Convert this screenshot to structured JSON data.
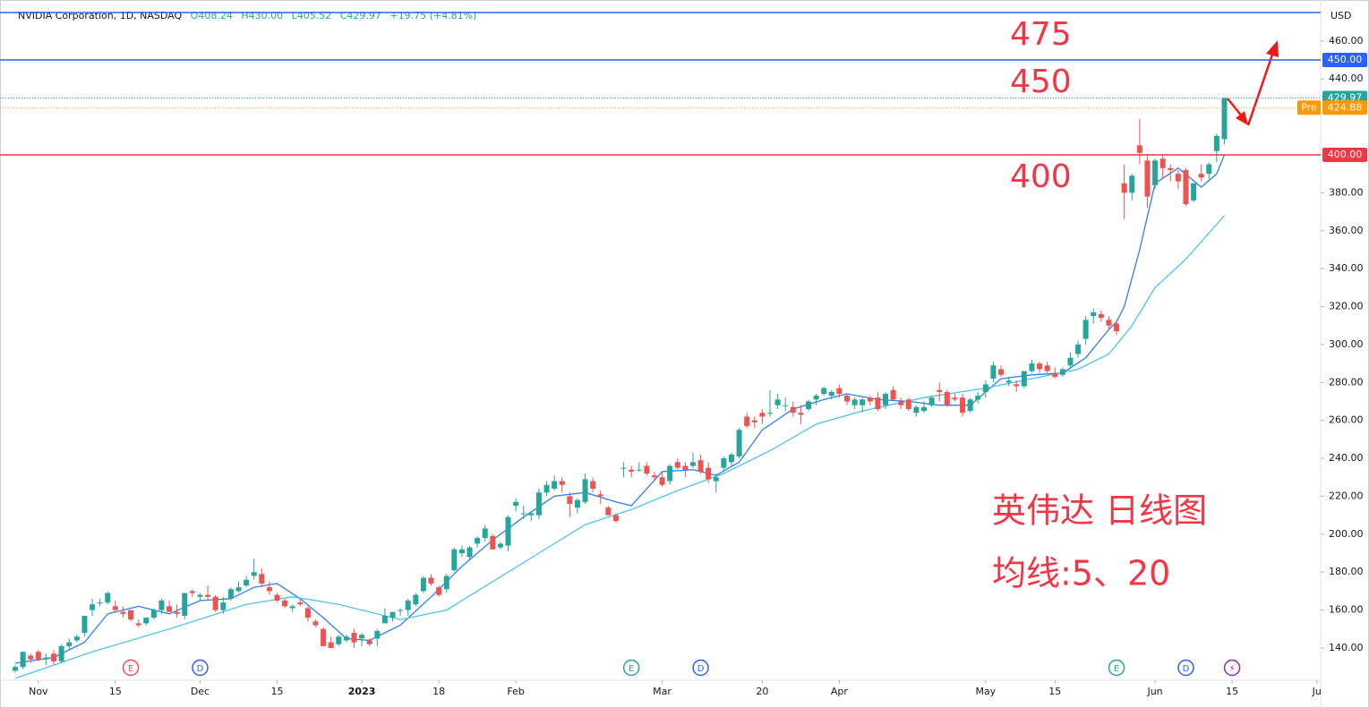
{
  "chart_data": {
    "type": "candlestick",
    "header": {
      "symbol": "NVIDIA Corporation, 1D, NASDAQ",
      "ohlc_labels": [
        "O408.24",
        "H430.00",
        "L405.52",
        "C429.97",
        "+19.75 (+4.81%)"
      ]
    },
    "currency": "USD",
    "up_color": "#26a69a",
    "down_color": "#ef5350",
    "xlim": [
      -1.98,
      169.5
    ],
    "xticks": [
      {
        "value": 3,
        "label": "Nov"
      },
      {
        "value": 13,
        "label": "15"
      },
      {
        "value": 24,
        "label": "Dec"
      },
      {
        "value": 34,
        "label": "15"
      },
      {
        "value": 45,
        "label": "2023"
      },
      {
        "value": 55,
        "label": "18"
      },
      {
        "value": 65,
        "label": "Feb"
      },
      {
        "value": 84,
        "label": "Mar"
      },
      {
        "value": 97,
        "label": "20"
      },
      {
        "value": 107,
        "label": "Apr"
      },
      {
        "value": 126,
        "label": "May"
      },
      {
        "value": 135,
        "label": "15"
      },
      {
        "value": 148,
        "label": "Jun"
      },
      {
        "value": 158,
        "label": "15"
      },
      {
        "value": 169,
        "label": "Ju"
      }
    ],
    "ylim": [
      123,
      478.8
    ],
    "yticks": [
      {
        "value": 140,
        "label": "140.00"
      },
      {
        "value": 160,
        "label": "160.00"
      },
      {
        "value": 180,
        "label": "180.00"
      },
      {
        "value": 200,
        "label": "200.00"
      },
      {
        "value": 220,
        "label": "220.00"
      },
      {
        "value": 240,
        "label": "240.00"
      },
      {
        "value": 260,
        "label": "260.00"
      },
      {
        "value": 280,
        "label": "280.00"
      },
      {
        "value": 300,
        "label": "300.00"
      },
      {
        "value": 320,
        "label": "320.00"
      },
      {
        "value": 340,
        "label": "340.00"
      },
      {
        "value": 360,
        "label": "360.00"
      },
      {
        "value": 380,
        "label": "380.00"
      },
      {
        "value": 440,
        "label": "440.00"
      },
      {
        "value": 460,
        "label": "460.00"
      }
    ],
    "candles": [
      [
        128,
        131,
        127,
        130
      ],
      [
        130,
        138,
        129,
        138
      ],
      [
        136,
        137,
        132,
        134
      ],
      [
        138,
        139,
        133,
        134
      ],
      [
        134,
        137,
        131,
        135
      ],
      [
        137,
        139,
        131,
        133
      ],
      [
        133,
        142,
        132,
        141
      ],
      [
        141,
        145,
        139,
        143
      ],
      [
        144,
        147,
        143,
        146
      ],
      [
        148,
        157,
        146,
        157
      ],
      [
        160,
        166,
        157,
        163
      ],
      [
        164,
        166,
        162,
        164
      ],
      [
        164,
        170,
        163,
        169
      ],
      [
        162,
        165,
        159,
        160
      ],
      [
        159,
        162,
        156,
        158
      ],
      [
        160,
        160,
        154,
        155
      ],
      [
        153,
        155,
        151,
        152
      ],
      [
        153,
        156,
        152,
        156
      ],
      [
        156,
        161,
        155,
        160
      ],
      [
        160,
        166,
        158,
        165
      ],
      [
        162,
        165,
        159,
        159
      ],
      [
        159,
        163,
        156,
        158
      ],
      [
        157,
        169,
        155,
        169
      ],
      [
        170,
        171,
        167,
        169
      ],
      [
        167,
        169,
        165,
        168
      ],
      [
        168,
        173,
        165,
        167
      ],
      [
        167,
        168,
        159,
        160
      ],
      [
        160,
        167,
        158,
        164
      ],
      [
        166,
        172,
        165,
        171
      ],
      [
        170,
        175,
        169,
        172
      ],
      [
        173,
        178,
        172,
        176
      ],
      [
        178,
        187,
        176,
        180
      ],
      [
        179,
        182,
        172,
        174
      ],
      [
        172,
        175,
        168,
        170
      ],
      [
        168,
        169,
        164,
        165
      ],
      [
        165,
        166,
        161,
        162
      ],
      [
        161,
        163,
        159,
        162
      ],
      [
        164,
        166,
        162,
        163
      ],
      [
        161,
        162,
        154,
        156
      ],
      [
        154,
        155,
        151,
        152
      ],
      [
        150,
        151,
        141,
        141
      ],
      [
        143,
        146,
        140,
        140
      ],
      [
        142,
        147,
        141,
        146
      ],
      [
        144,
        147,
        143,
        146
      ],
      [
        148,
        150,
        140,
        143
      ],
      [
        145,
        148,
        141,
        147
      ],
      [
        144,
        145,
        141,
        142
      ],
      [
        145,
        150,
        141,
        149
      ],
      [
        153,
        161,
        153,
        157
      ],
      [
        156,
        159,
        154,
        159
      ],
      [
        160,
        161,
        157,
        160
      ],
      [
        160,
        166,
        157,
        165
      ],
      [
        163,
        169,
        162,
        168
      ],
      [
        170,
        178,
        169,
        177
      ],
      [
        177,
        179,
        173,
        174
      ],
      [
        172,
        173,
        167,
        168
      ],
      [
        171,
        179,
        169,
        178
      ],
      [
        181,
        193,
        180,
        192
      ],
      [
        190,
        194,
        188,
        192
      ],
      [
        188,
        194,
        186,
        193
      ],
      [
        195,
        199,
        193,
        198
      ],
      [
        198,
        205,
        196,
        203
      ],
      [
        199,
        200,
        192,
        192
      ],
      [
        193,
        196,
        192,
        195
      ],
      [
        194,
        210,
        191,
        209
      ],
      [
        215,
        219,
        212,
        217
      ],
      [
        211,
        215,
        208,
        211
      ],
      [
        210,
        212,
        207,
        211
      ],
      [
        210,
        224,
        208,
        222
      ],
      [
        222,
        228,
        220,
        226
      ],
      [
        224,
        231,
        223,
        228
      ],
      [
        228,
        230,
        222,
        226
      ],
      [
        220,
        222,
        209,
        216
      ],
      [
        214,
        219,
        211,
        218
      ],
      [
        217,
        232,
        216,
        229
      ],
      [
        228,
        230,
        222,
        224
      ],
      [
        221,
        223,
        216,
        220
      ],
      [
        214,
        215,
        210,
        210
      ],
      [
        210,
        211,
        206,
        207
      ],
      [
        235,
        238,
        230,
        235
      ],
      [
        234,
        236,
        230,
        233
      ],
      [
        234,
        238,
        233,
        234
      ],
      [
        236,
        238,
        231,
        232
      ],
      [
        231,
        233,
        228,
        230
      ],
      [
        230,
        233,
        225,
        226
      ],
      [
        228,
        237,
        226,
        236
      ],
      [
        238,
        240,
        234,
        235
      ],
      [
        236,
        238,
        230,
        234
      ],
      [
        236,
        243,
        235,
        238
      ],
      [
        239,
        242,
        232,
        233
      ],
      [
        235,
        238,
        227,
        229
      ],
      [
        228,
        232,
        222,
        230
      ],
      [
        235,
        241,
        233,
        240
      ],
      [
        238,
        243,
        236,
        242
      ],
      [
        241,
        256,
        240,
        255
      ],
      [
        262,
        264,
        256,
        257
      ],
      [
        260,
        262,
        256,
        259
      ],
      [
        264,
        266,
        258,
        262
      ],
      [
        264,
        276,
        262,
        264
      ],
      [
        268,
        274,
        266,
        271
      ],
      [
        268,
        272,
        265,
        268
      ],
      [
        267,
        270,
        262,
        264
      ],
      [
        264,
        268,
        258,
        263
      ],
      [
        266,
        271,
        265,
        270
      ],
      [
        271,
        274,
        268,
        273
      ],
      [
        274,
        278,
        273,
        277
      ],
      [
        273,
        276,
        271,
        275
      ],
      [
        277,
        279,
        272,
        274
      ],
      [
        273,
        274,
        268,
        270
      ],
      [
        268,
        272,
        266,
        271
      ],
      [
        268,
        272,
        264,
        271
      ],
      [
        272,
        273,
        268,
        270
      ],
      [
        272,
        275,
        265,
        266
      ],
      [
        268,
        275,
        266,
        274
      ],
      [
        276,
        278,
        270,
        271
      ],
      [
        270,
        272,
        266,
        268
      ],
      [
        271,
        272,
        265,
        266
      ],
      [
        264,
        268,
        262,
        267
      ],
      [
        265,
        270,
        264,
        267
      ],
      [
        268,
        273,
        267,
        272
      ],
      [
        276,
        280,
        270,
        275
      ],
      [
        275,
        276,
        267,
        268
      ],
      [
        272,
        274,
        270,
        271
      ],
      [
        272,
        274,
        262,
        264
      ],
      [
        265,
        272,
        264,
        271
      ],
      [
        271,
        275,
        269,
        273
      ],
      [
        275,
        281,
        272,
        279
      ],
      [
        282,
        291,
        280,
        289
      ],
      [
        287,
        289,
        283,
        284
      ],
      [
        280,
        283,
        278,
        281
      ],
      [
        279,
        281,
        275,
        278
      ],
      [
        278,
        286,
        277,
        286
      ],
      [
        286,
        292,
        285,
        290
      ],
      [
        290,
        291,
        285,
        287
      ],
      [
        289,
        291,
        285,
        286
      ],
      [
        285,
        288,
        282,
        283
      ],
      [
        284,
        288,
        283,
        287
      ],
      [
        289,
        296,
        287,
        293
      ],
      [
        295,
        302,
        293,
        300
      ],
      [
        303,
        315,
        300,
        313
      ],
      [
        315,
        319,
        311,
        317
      ],
      [
        316,
        318,
        312,
        314
      ],
      [
        313,
        315,
        308,
        310
      ],
      [
        311,
        313,
        305,
        307
      ],
      [
        385,
        395,
        366,
        380
      ],
      [
        380,
        390,
        376,
        389
      ],
      [
        405,
        419,
        395,
        401
      ],
      [
        397,
        400,
        372,
        378
      ],
      [
        384,
        398,
        382,
        397
      ],
      [
        398,
        400,
        387,
        393
      ],
      [
        393,
        395,
        386,
        392
      ],
      [
        390,
        392,
        382,
        386
      ],
      [
        392,
        393,
        373,
        374
      ],
      [
        376,
        385,
        375,
        385
      ],
      [
        390,
        395,
        386,
        388
      ],
      [
        390,
        396,
        387,
        395
      ],
      [
        402,
        411,
        396,
        410
      ],
      [
        408.24,
        430,
        405.52,
        429.97
      ]
    ],
    "lines": [
      {
        "color": "#2f80ed",
        "x": [
          0,
          5,
          9,
          12,
          16,
          20,
          24,
          28,
          31,
          34,
          37,
          40,
          43,
          46,
          50,
          54,
          58,
          62,
          66,
          70,
          74,
          78,
          80,
          84,
          88,
          91,
          94,
          97,
          101,
          105,
          108,
          112,
          116,
          120,
          124,
          128,
          132,
          136,
          139,
          142,
          143,
          144,
          146,
          148,
          151,
          154,
          156,
          157
        ],
        "values": [
          132,
          135,
          143,
          158,
          162,
          158,
          165,
          166,
          172,
          174,
          166,
          156,
          145,
          144,
          152,
          167,
          183,
          197,
          209,
          220,
          222,
          217,
          215,
          233,
          234,
          231,
          238,
          255,
          266,
          271,
          274,
          271,
          270,
          268,
          268,
          282,
          284,
          285,
          293,
          308,
          312,
          320,
          350,
          385,
          393,
          383,
          390,
          400
        ]
      },
      {
        "color": "#4fc3f7",
        "x": [
          0,
          10,
          20,
          30,
          36,
          42,
          50,
          56,
          62,
          68,
          74,
          80,
          86,
          92,
          98,
          104,
          110,
          118,
          126,
          132,
          138,
          142,
          145,
          148,
          152,
          157
        ],
        "values": [
          124,
          138,
          150,
          163,
          167,
          163,
          155,
          160,
          175,
          190,
          205,
          213,
          223,
          232,
          244,
          258,
          265,
          272,
          277,
          282,
          287,
          295,
          310,
          330,
          345,
          368
        ]
      }
    ],
    "levels": [
      {
        "value": 475,
        "color": "#2962ff"
      },
      {
        "value": 450,
        "color": "#2962ff",
        "label": "450.00"
      },
      {
        "value": 400,
        "color": "#f23645",
        "label": "400.00"
      }
    ],
    "price_markers": [
      {
        "value": 429.97,
        "label": "429.97",
        "color": "#26a69a"
      },
      {
        "value": 424.88,
        "label": "424.88",
        "tag": "Pre",
        "color": "#ff9800"
      }
    ],
    "level_annotations": [
      475,
      450,
      400
    ],
    "annotation_color": "#f23645",
    "notes": [
      "英伟达 日线图",
      "均线:5、20"
    ],
    "events": [
      {
        "x": 15,
        "label": "E",
        "color": "#ef5350"
      },
      {
        "x": 24,
        "label": "D",
        "color": "#2962ff"
      },
      {
        "x": 80,
        "label": "E",
        "color": "#26a69a"
      },
      {
        "x": 89,
        "label": "D",
        "color": "#2962ff"
      },
      {
        "x": 143,
        "label": "E",
        "color": "#26a69a"
      },
      {
        "x": 152,
        "label": "D",
        "color": "#2962ff"
      },
      {
        "x": 158,
        "label": "⚡",
        "color": "#9c27b0"
      }
    ]
  }
}
